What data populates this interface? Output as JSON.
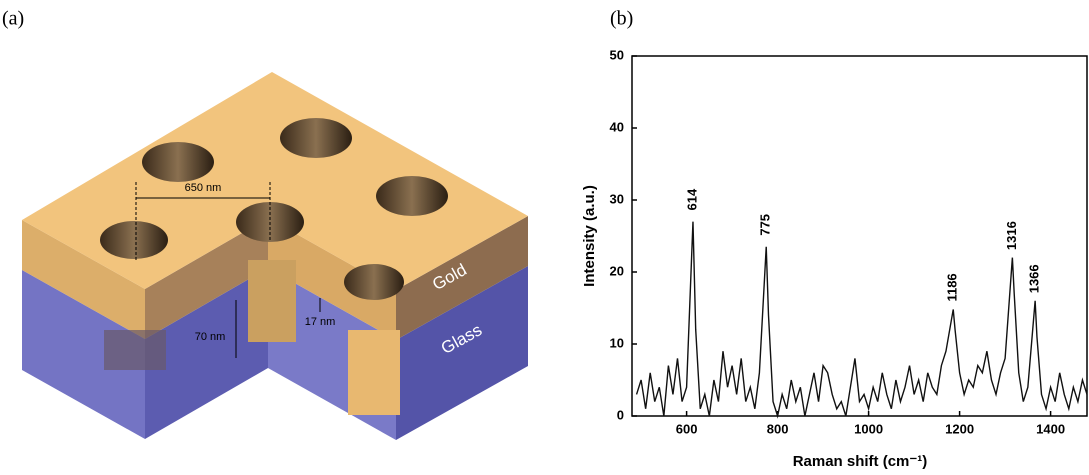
{
  "panel_labels": [
    "(a)",
    "(b)"
  ],
  "diagram": {
    "dimensions": [
      "650 nm",
      "70 nm",
      "17 nm"
    ],
    "layers": [
      "Gold",
      "Glass"
    ]
  },
  "chart_data": {
    "type": "line",
    "xlabel": "Raman shift (cm⁻¹)",
    "ylabel": "Intensity (a.u.)",
    "xlim": [
      480,
      1480
    ],
    "ylim": [
      0,
      50
    ],
    "xticks": [
      600,
      800,
      1000,
      1200,
      1400
    ],
    "yticks": [
      0,
      10,
      20,
      30,
      40,
      50
    ],
    "color": "#111111",
    "peak_labels": [
      614,
      775,
      1186,
      1316,
      1366
    ],
    "x": [
      490,
      500,
      510,
      520,
      530,
      540,
      550,
      560,
      570,
      580,
      590,
      600,
      614,
      620,
      630,
      640,
      650,
      660,
      670,
      680,
      690,
      700,
      710,
      720,
      730,
      740,
      750,
      760,
      775,
      780,
      790,
      800,
      810,
      820,
      830,
      840,
      850,
      860,
      870,
      880,
      890,
      900,
      910,
      920,
      930,
      940,
      950,
      960,
      970,
      980,
      990,
      1000,
      1010,
      1020,
      1030,
      1040,
      1050,
      1060,
      1070,
      1080,
      1090,
      1100,
      1110,
      1120,
      1130,
      1140,
      1150,
      1160,
      1170,
      1186,
      1190,
      1200,
      1210,
      1220,
      1230,
      1240,
      1250,
      1260,
      1270,
      1280,
      1290,
      1300,
      1316,
      1320,
      1330,
      1340,
      1350,
      1366,
      1370,
      1380,
      1390,
      1400,
      1410,
      1420,
      1430,
      1440,
      1450,
      1460,
      1470,
      1480
    ],
    "values": [
      3,
      5,
      1,
      6,
      2,
      4,
      0,
      7,
      3,
      8,
      2,
      4,
      27,
      12,
      1,
      3,
      0,
      5,
      2,
      9,
      4,
      7,
      3,
      8,
      2,
      4,
      1,
      6,
      23.5,
      14,
      2,
      0,
      3,
      1,
      5,
      2,
      4,
      0,
      3,
      6,
      2,
      7,
      6,
      3,
      1,
      2,
      0,
      4,
      8,
      2,
      3,
      1,
      4,
      2,
      6,
      3,
      1,
      5,
      2,
      4,
      7,
      3,
      5,
      2,
      6,
      4,
      3,
      7,
      9,
      14.8,
      12,
      6,
      3,
      5,
      4,
      7,
      6,
      9,
      5,
      3,
      6,
      8,
      22,
      17,
      6,
      2,
      4,
      16,
      11,
      3,
      1,
      4,
      2,
      6,
      3,
      1,
      4,
      2,
      5,
      3
    ]
  }
}
